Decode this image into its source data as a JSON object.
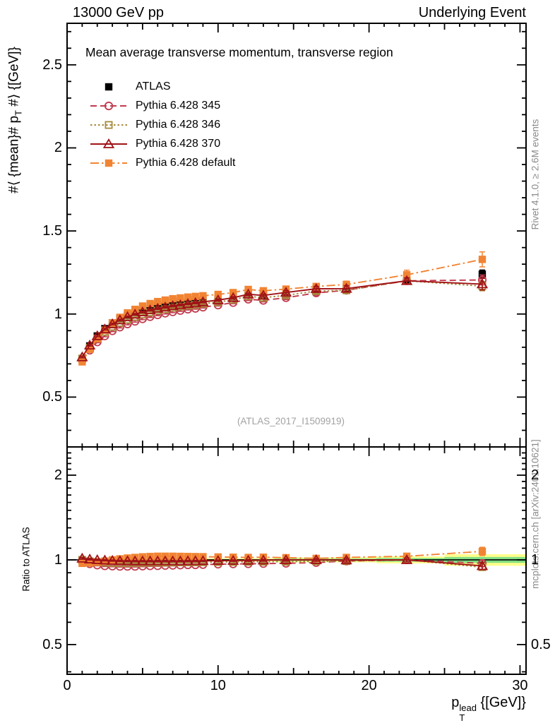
{
  "header": {
    "left": "13000 GeV pp",
    "right": "Underlying Event"
  },
  "right_margin": {
    "top": "Rivet 4.1.0, ≥ 2.6M events",
    "bottom": "mcplots.cern.ch [arXiv:2401.10621]"
  },
  "main_panel": {
    "title": "Mean average transverse momentum, transverse region",
    "watermark": "(ATLAS_2017_I1509919)",
    "ylabel": {
      "pre": "#⟨ {mean}# p",
      "sub": "T",
      "post": " #⟩ {[GeV]}"
    },
    "ytick_labels": [
      "0.5",
      "1",
      "1.5",
      "2",
      "2.5"
    ],
    "ytick_values": [
      0.5,
      1,
      1.5,
      2,
      2.5
    ]
  },
  "ratio_panel": {
    "ylabel": "Ratio to ATLAS",
    "ytick_labels": [
      "0.5",
      "1",
      "2"
    ],
    "ytick_values": [
      0.5,
      1,
      2
    ]
  },
  "xaxis": {
    "tick_labels": [
      "0",
      "10",
      "20",
      "30"
    ],
    "tick_values": [
      0,
      10,
      20,
      30
    ],
    "label": {
      "base": "p",
      "sup": "lead",
      "sub": "T",
      "unit": " {[GeV]}"
    }
  },
  "legend": [
    {
      "label": "ATLAS",
      "color": "#000000",
      "marker": "square-filled",
      "line": "none"
    },
    {
      "label": "Pythia 6.428 345",
      "color": "#c13b4f",
      "marker": "circle-open",
      "line": "dashed"
    },
    {
      "label": "Pythia 6.428 346",
      "color": "#a68b3c",
      "marker": "square-open",
      "line": "dotted"
    },
    {
      "label": "Pythia 6.428 370",
      "color": "#a11217",
      "marker": "triangle-open",
      "line": "solid"
    },
    {
      "label": "Pythia 6.428 default",
      "color": "#f18433",
      "marker": "square-filled",
      "line": "dashdot"
    }
  ],
  "chart_data": {
    "type": "line",
    "title": "Mean average transverse momentum, transverse region",
    "xlabel": "p_T^lead {[GeV]}",
    "ylabel": "#⟨ {mean}# p_T #⟩ {[GeV]}",
    "ratio_ylabel": "Ratio to ATLAS",
    "xlim": [
      0,
      30.4
    ],
    "main_ylim": [
      0.2,
      2.75
    ],
    "ratio_ylim": [
      0.392,
      2.52
    ],
    "ratio_log": true,
    "legend_position": "top-left",
    "x": [
      1,
      1.5,
      2,
      2.5,
      3,
      3.5,
      4,
      4.5,
      5,
      5.5,
      6,
      6.5,
      7,
      7.5,
      8,
      8.5,
      9,
      10,
      11,
      12,
      13,
      14.5,
      16.5,
      18.5,
      22.5,
      27.5
    ],
    "series": [
      {
        "name": "ATLAS",
        "color": "#000000",
        "marker": "square-filled",
        "line": "none",
        "values": [
          0.732,
          0.808,
          0.868,
          0.912,
          0.946,
          0.972,
          0.992,
          1.008,
          1.022,
          1.034,
          1.044,
          1.052,
          1.06,
          1.066,
          1.072,
          1.077,
          1.082,
          1.092,
          1.105,
          1.125,
          1.115,
          1.13,
          1.152,
          1.155,
          1.2,
          1.24
        ],
        "yerr": [
          0.005,
          0.005,
          0.005,
          0.005,
          0.005,
          0.005,
          0.005,
          0.005,
          0.005,
          0.005,
          0.005,
          0.005,
          0.005,
          0.005,
          0.005,
          0.005,
          0.005,
          0.005,
          0.006,
          0.006,
          0.007,
          0.008,
          0.01,
          0.013,
          0.018,
          0.025
        ]
      },
      {
        "name": "Pythia 6.428 345",
        "color": "#c13b4f",
        "marker": "circle-open",
        "line": "dashed",
        "values": [
          0.721,
          0.782,
          0.832,
          0.868,
          0.899,
          0.921,
          0.94,
          0.956,
          0.971,
          0.984,
          0.995,
          1.005,
          1.013,
          1.021,
          1.029,
          1.034,
          1.041,
          1.054,
          1.069,
          1.089,
          1.082,
          1.098,
          1.127,
          1.143,
          1.2,
          1.205
        ],
        "ratio": [
          0.985,
          0.968,
          0.958,
          0.952,
          0.95,
          0.948,
          0.948,
          0.948,
          0.95,
          0.952,
          0.953,
          0.955,
          0.956,
          0.958,
          0.96,
          0.96,
          0.962,
          0.965,
          0.967,
          0.968,
          0.97,
          0.972,
          0.978,
          0.99,
          1.0,
          0.972
        ],
        "yerr": [
          0.005,
          0.005,
          0.005,
          0.005,
          0.005,
          0.005,
          0.005,
          0.005,
          0.005,
          0.005,
          0.005,
          0.005,
          0.005,
          0.005,
          0.005,
          0.005,
          0.005,
          0.006,
          0.007,
          0.008,
          0.009,
          0.011,
          0.014,
          0.02,
          0.02,
          0.03
        ]
      },
      {
        "name": "Pythia 6.428 346",
        "color": "#a68b3c",
        "marker": "square-open",
        "line": "dotted",
        "values": [
          0.732,
          0.798,
          0.852,
          0.892,
          0.922,
          0.947,
          0.966,
          0.983,
          0.997,
          1.01,
          1.021,
          1.029,
          1.038,
          1.045,
          1.051,
          1.055,
          1.062,
          1.072,
          1.086,
          1.107,
          1.098,
          1.113,
          1.138,
          1.143,
          1.2,
          1.168
        ],
        "ratio": [
          1.0,
          0.988,
          0.982,
          0.978,
          0.975,
          0.974,
          0.974,
          0.975,
          0.976,
          0.977,
          0.978,
          0.978,
          0.979,
          0.98,
          0.98,
          0.98,
          0.981,
          0.982,
          0.983,
          0.984,
          0.985,
          0.985,
          0.988,
          0.99,
          1.0,
          0.942
        ],
        "yerr": [
          0.005,
          0.005,
          0.005,
          0.005,
          0.005,
          0.005,
          0.005,
          0.005,
          0.005,
          0.005,
          0.005,
          0.005,
          0.005,
          0.005,
          0.005,
          0.005,
          0.005,
          0.006,
          0.007,
          0.008,
          0.009,
          0.011,
          0.014,
          0.018,
          0.018,
          0.028
        ]
      },
      {
        "name": "Pythia 6.428 370",
        "color": "#a11217",
        "marker": "triangle-open",
        "line": "solid",
        "values": [
          0.741,
          0.812,
          0.868,
          0.909,
          0.94,
          0.964,
          0.983,
          0.998,
          1.012,
          1.024,
          1.033,
          1.041,
          1.049,
          1.055,
          1.062,
          1.067,
          1.073,
          1.084,
          1.098,
          1.119,
          1.112,
          1.13,
          1.152,
          1.153,
          1.2,
          1.18
        ],
        "ratio": [
          1.012,
          1.005,
          1.0,
          0.997,
          0.994,
          0.992,
          0.991,
          0.99,
          0.99,
          0.99,
          0.99,
          0.99,
          0.99,
          0.99,
          0.991,
          0.991,
          0.992,
          0.993,
          0.994,
          0.995,
          0.997,
          1.0,
          1.0,
          0.998,
          1.0,
          0.952
        ],
        "yerr": [
          0.005,
          0.005,
          0.005,
          0.005,
          0.005,
          0.005,
          0.005,
          0.005,
          0.005,
          0.005,
          0.005,
          0.005,
          0.005,
          0.005,
          0.005,
          0.005,
          0.005,
          0.006,
          0.007,
          0.008,
          0.009,
          0.011,
          0.014,
          0.018,
          0.018,
          0.035
        ]
      },
      {
        "name": "Pythia 6.428 default",
        "color": "#f18433",
        "marker": "square-filled",
        "line": "dashdot",
        "values": [
          0.712,
          0.788,
          0.852,
          0.903,
          0.946,
          0.98,
          1.007,
          1.028,
          1.048,
          1.063,
          1.075,
          1.084,
          1.092,
          1.097,
          1.102,
          1.106,
          1.11,
          1.118,
          1.129,
          1.148,
          1.14,
          1.15,
          1.166,
          1.178,
          1.236,
          1.329
        ],
        "ratio": [
          0.972,
          0.975,
          0.982,
          0.99,
          1.0,
          1.008,
          1.015,
          1.02,
          1.025,
          1.028,
          1.03,
          1.03,
          1.03,
          1.029,
          1.028,
          1.027,
          1.026,
          1.024,
          1.022,
          1.02,
          1.022,
          1.018,
          1.012,
          1.02,
          1.03,
          1.072
        ],
        "yerr": [
          0.005,
          0.005,
          0.005,
          0.005,
          0.005,
          0.005,
          0.005,
          0.005,
          0.005,
          0.005,
          0.005,
          0.005,
          0.005,
          0.005,
          0.005,
          0.005,
          0.005,
          0.006,
          0.007,
          0.008,
          0.01,
          0.012,
          0.015,
          0.02,
          0.028,
          0.045
        ]
      }
    ],
    "ratio_band": [
      {
        "x0": 0.95,
        "x1": 13.75,
        "green": 0.006,
        "yellow": 0.013
      },
      {
        "x0": 13.75,
        "x1": 20.5,
        "green": 0.01,
        "yellow": 0.02
      },
      {
        "x0": 20.5,
        "x1": 25.0,
        "green": 0.015,
        "yellow": 0.028
      },
      {
        "x0": 25.0,
        "x1": 30.4,
        "green": 0.024,
        "yellow": 0.047
      }
    ],
    "band_colors": {
      "yellow": "#ffff8c",
      "green": "#82df82"
    }
  }
}
